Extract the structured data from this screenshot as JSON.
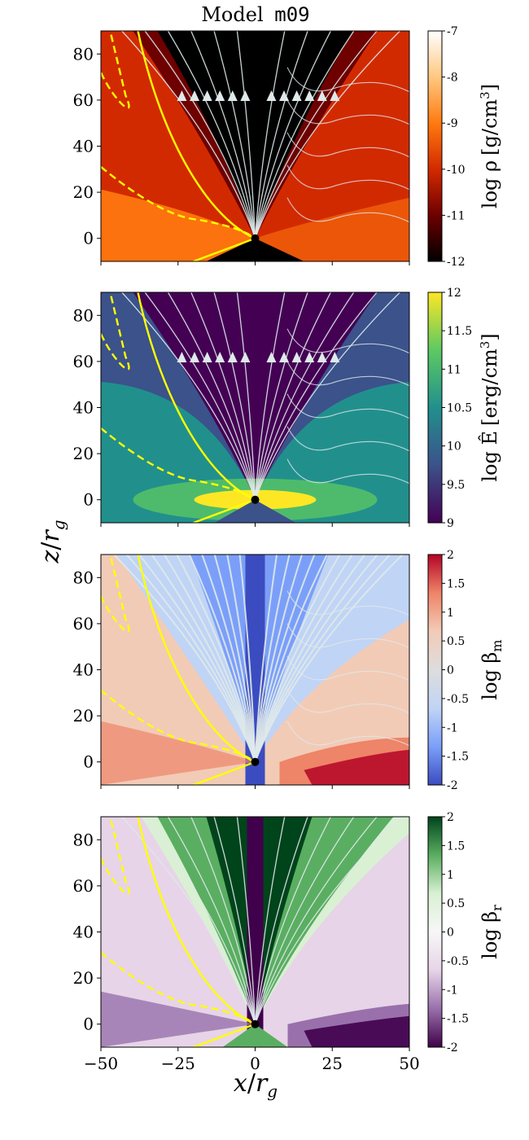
{
  "figure": {
    "title_prefix": "Model",
    "title_model": "m09",
    "shared_xlabel_var": "x",
    "shared_xlabel_sub": "g",
    "shared_ylabel_var": "z",
    "shared_ylabel_sub": "g",
    "x_ticks": [
      "−50",
      "−25",
      "0",
      "25",
      "50"
    ],
    "y_ticks": [
      "0",
      "20",
      "40",
      "60",
      "80"
    ]
  },
  "chart_data": [
    {
      "type": "heatmap",
      "quantity": "density",
      "x_range": [
        -50,
        50
      ],
      "y_range": [
        -10,
        90
      ],
      "x_ticks": [
        -50,
        -25,
        0,
        25,
        50
      ],
      "y_ticks": [
        0,
        20,
        40,
        60,
        80
      ],
      "overlay": "velocity streamlines with arrowheads; yellow solid and dashed contours",
      "colorbar": {
        "label_pre": "log ρ",
        "label_unit": "[g/cm",
        "label_sup": "3",
        "label_post": "]",
        "range": [
          -12,
          -7
        ],
        "tick_labels": [
          "-12",
          "-11",
          "-10",
          "-9",
          "-8",
          "-7"
        ],
        "colors": [
          "#000000",
          "#6e0000",
          "#d22a00",
          "#ff7a10",
          "#ffc880",
          "#ffffff"
        ]
      }
    },
    {
      "type": "heatmap",
      "quantity": "radiation energy density",
      "x_range": [
        -50,
        50
      ],
      "y_range": [
        -10,
        90
      ],
      "x_ticks": [
        -50,
        -25,
        0,
        25,
        50
      ],
      "y_ticks": [
        0,
        20,
        40,
        60,
        80
      ],
      "overlay": "radiation flux streamlines with arrowheads; yellow solid and dashed contours",
      "colorbar": {
        "label_pre": "log Ê",
        "label_unit": "[erg/cm",
        "label_sup": "3",
        "label_post": "]",
        "range": [
          9,
          12
        ],
        "tick_labels": [
          "9",
          "9.5",
          "10",
          "10.5",
          "11",
          "11.5",
          "12"
        ],
        "colors": [
          "#440154",
          "#3b528b",
          "#21908d",
          "#5dc962",
          "#fde725"
        ]
      }
    },
    {
      "type": "heatmap",
      "quantity": "magnetic beta",
      "x_range": [
        -50,
        50
      ],
      "y_range": [
        -10,
        90
      ],
      "x_ticks": [
        -50,
        -25,
        0,
        25,
        50
      ],
      "y_ticks": [
        0,
        20,
        40,
        60,
        80
      ],
      "overlay": "magnetic field lines; yellow solid and dashed contours",
      "colorbar": {
        "label_pre": "log β",
        "label_sub": "m",
        "range": [
          -2,
          2
        ],
        "tick_labels": [
          "-2",
          "-1.5",
          "-1",
          "-0.5",
          "0",
          "0.5",
          "1",
          "1.5",
          "2"
        ],
        "colors": [
          "#3b4cc0",
          "#7b9ff9",
          "#c0d4f5",
          "#dddddd",
          "#f2cbb7",
          "#ee8468",
          "#b40426"
        ]
      }
    },
    {
      "type": "heatmap",
      "quantity": "radiation beta",
      "x_range": [
        -50,
        50
      ],
      "y_range": [
        -10,
        90
      ],
      "x_ticks": [
        -50,
        -25,
        0,
        25,
        50
      ],
      "y_ticks": [
        0,
        20,
        40,
        60,
        80
      ],
      "overlay": "yellow solid and dashed contours",
      "colorbar": {
        "label_pre": "log β",
        "label_sub": "r",
        "range": [
          -2,
          2
        ],
        "tick_labels": [
          "-2",
          "-1.5",
          "-1",
          "-0.5",
          "0",
          "0.5",
          "1",
          "1.5",
          "2"
        ],
        "colors": [
          "#40004b",
          "#9970ab",
          "#e7d4e8",
          "#f7f7f7",
          "#d9f0d3",
          "#5aae61",
          "#00441b"
        ]
      }
    }
  ]
}
